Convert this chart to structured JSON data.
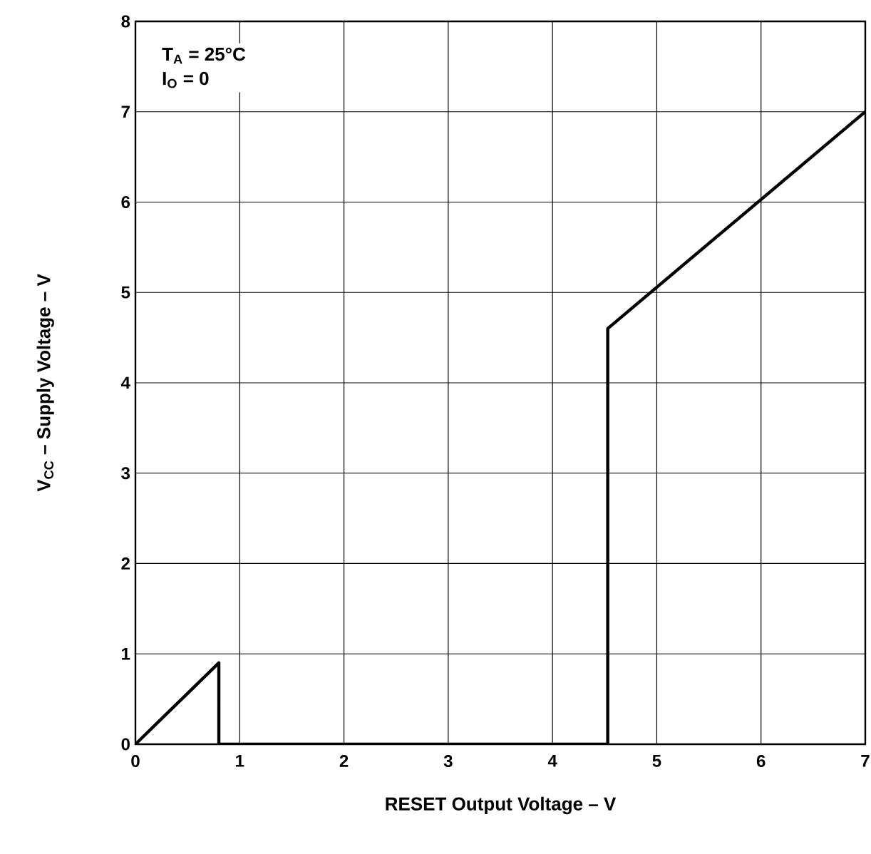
{
  "chart_data": {
    "type": "line",
    "xlabel": "RESET Output Voltage – V",
    "ylabel": "V$_{CC}$ – Supply Voltage – V",
    "annotations": [
      "T$_{A}$ = 25°C",
      "I$_{O}$ = 0"
    ],
    "x": [
      0,
      0.8,
      0.8,
      4.53,
      4.53,
      7
    ],
    "series": [
      {
        "color": "#000000",
        "values": [
          0,
          0.9,
          0,
          0,
          4.6,
          7
        ]
      }
    ],
    "xlim": [
      0,
      7
    ],
    "ylim": [
      0,
      8
    ],
    "xticks": [
      0,
      1,
      2,
      3,
      4,
      5,
      6,
      7
    ],
    "yticks": [
      0,
      1,
      2,
      3,
      4,
      5,
      6,
      7,
      8
    ],
    "grid": true,
    "marker": "none",
    "line_style": "solid"
  }
}
